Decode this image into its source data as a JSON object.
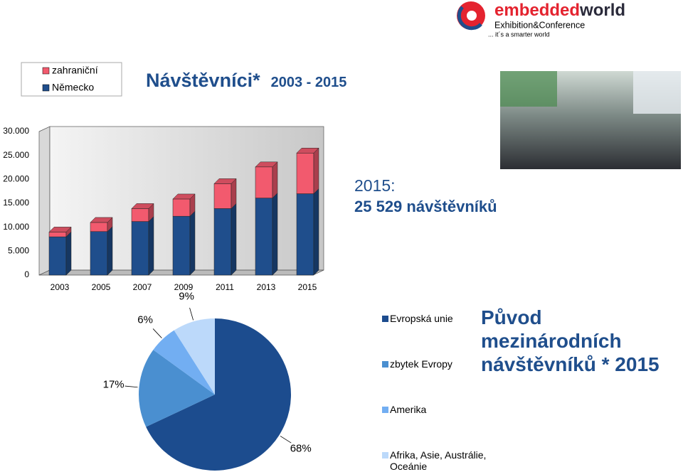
{
  "logo": {
    "name_1": "embedded",
    "name_2": "world",
    "line_1": "Exhibition&Conference",
    "line_2": "... it´s a smarter world"
  },
  "chart_data": [
    {
      "type": "bar3d_stacked",
      "title": "Návštěvníci*",
      "subtitle": "2003 - 2015",
      "categories": [
        "2003",
        "2005",
        "2007",
        "2009",
        "2011",
        "2013",
        "2015"
      ],
      "series": [
        {
          "name": "Německo",
          "color": "#1f4e8c",
          "values": [
            8000,
            9100,
            11200,
            12300,
            13900,
            16100,
            17000
          ]
        },
        {
          "name": "zahraniční",
          "color": "#f25a6e",
          "values": [
            1000,
            1900,
            2700,
            3600,
            5200,
            6500,
            8500
          ]
        }
      ],
      "ylim": [
        0,
        30000
      ],
      "yticks": [
        0,
        {
          "value": 5000,
          "label": "5.000"
        },
        {
          "value": 10000,
          "label": "10.000"
        },
        {
          "value": 15000,
          "label": "15.000"
        },
        {
          "value": 20000,
          "label": "20.000"
        },
        {
          "value": 25000,
          "label": "25.000"
        },
        {
          "value": 30000,
          "label": "30.000"
        }
      ],
      "grid": false,
      "annotations": [
        "2015:",
        "25 529 návštěvníků"
      ]
    },
    {
      "type": "pie",
      "title": "Původ mezinárodních návštěvníků * 2015",
      "categories": [
        "Evropská unie",
        "zbytek Evropy",
        "Amerika",
        "Afrika, Asie, Austrálie, Oceánie"
      ],
      "values": [
        68,
        17,
        6,
        9
      ],
      "value_labels": [
        "68%",
        "17%",
        "6%",
        "9%"
      ],
      "colors": [
        "#1c4c8e",
        "#4a8fd0",
        "#72aef2",
        "#bcd9fa"
      ]
    }
  ]
}
